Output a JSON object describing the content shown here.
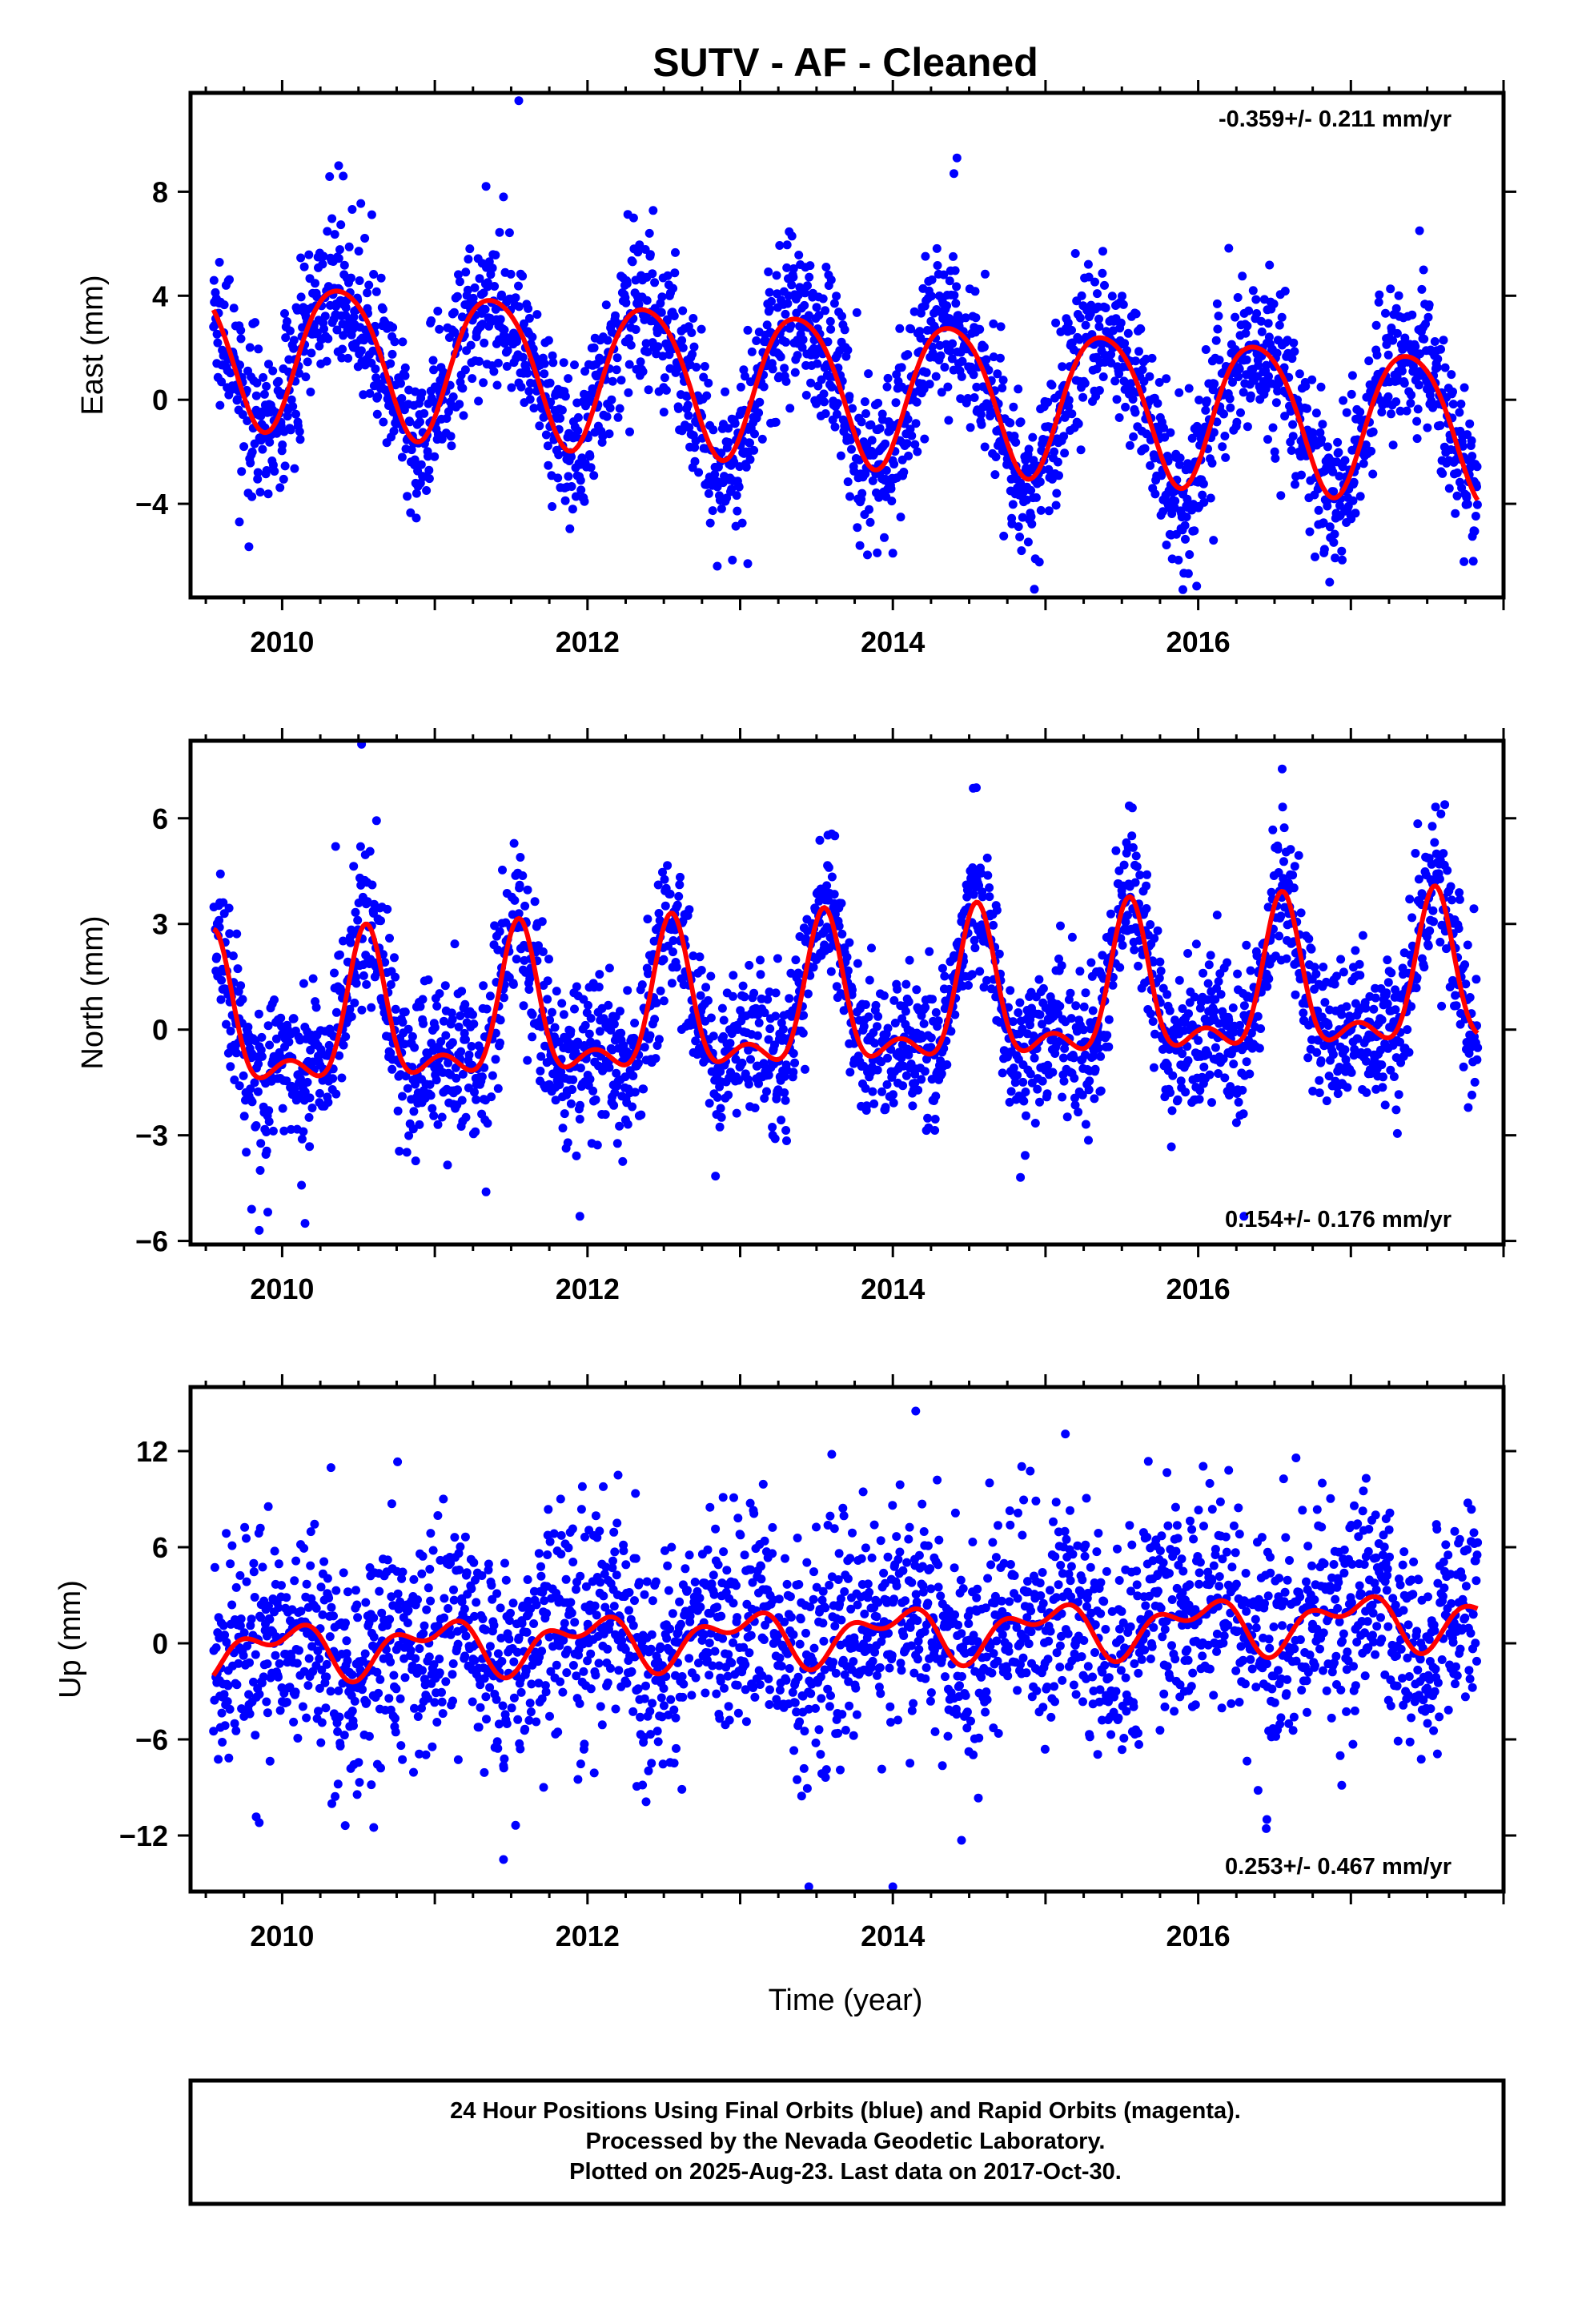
{
  "title": "SUTV  - AF - Cleaned",
  "x_axis_label": "Time (year)",
  "footer": {
    "line1": "24 Hour Positions Using Final Orbits (blue) and Rapid Orbits (magenta).",
    "line2": "Processed by the Nevada Geodetic Laboratory.",
    "line3": "Plotted on 2025-Aug-23. Last data on 2017-Oct-30."
  },
  "colors": {
    "final_orbits": "#0000ff",
    "rapid_orbits": "#ff00ff",
    "model_fit": "#ff0000",
    "frame": "#000000"
  },
  "chart_data": [
    {
      "type": "scatter",
      "name": "East",
      "ylabel": "East (mm)",
      "rate_text": "-0.359+/- 0.211 mm/yr",
      "rate_position": "top-right",
      "xlim": [
        2009.4,
        2018.0
      ],
      "ylim": [
        -7.6,
        11.8
      ],
      "yticks": [
        -4,
        0,
        4,
        8
      ],
      "xticks": [
        2010,
        2012,
        2014,
        2016
      ],
      "data_start": 2009.55,
      "data_end": 2017.83,
      "model": {
        "offset": 2.0,
        "trend": -0.359,
        "t0": 2009.55,
        "annual_amp": 2.8,
        "annual_phase_year": 2010.38,
        "semiannual_amp": 0.35,
        "semiannual_phase_year": 2010.15
      },
      "scatter_sigma": 1.5,
      "outliers": [
        [
          2010.37,
          9.0
        ],
        [
          2010.4,
          8.6
        ],
        [
          2011.55,
          11.5
        ],
        [
          2011.45,
          7.8
        ],
        [
          2014.42,
          9.3
        ],
        [
          2014.4,
          8.7
        ],
        [
          2017.45,
          6.5
        ],
        [
          2009.72,
          -4.7
        ],
        [
          2012.85,
          -6.4
        ],
        [
          2013.05,
          -6.3
        ],
        [
          2014.0,
          -5.9
        ],
        [
          2015.9,
          -7.3
        ],
        [
          2016.1,
          -5.4
        ]
      ]
    },
    {
      "type": "scatter",
      "name": "North",
      "ylabel": "North (mm)",
      "rate_text": "0.154+/- 0.176 mm/yr",
      "rate_position": "bottom-right",
      "xlim": [
        2009.4,
        2018.0
      ],
      "ylim": [
        -6.1,
        8.2
      ],
      "yticks": [
        -6,
        -3,
        0,
        3,
        6
      ],
      "xticks": [
        2010,
        2012,
        2014,
        2016
      ],
      "data_start": 2009.55,
      "data_end": 2017.83,
      "model": {
        "offset": 0.3,
        "trend": 0.154,
        "t0": 2009.55,
        "peak_phase_year": 2010.55,
        "peak_amp": 3.8,
        "peak_width": 0.12
      },
      "scatter_sigma": 1.1,
      "outliers": [
        [
          2010.52,
          8.1
        ],
        [
          2010.35,
          5.2
        ],
        [
          2009.85,
          -5.7
        ],
        [
          2009.8,
          -5.1
        ],
        [
          2010.15,
          -5.5
        ],
        [
          2011.95,
          -5.3
        ],
        [
          2013.62,
          5.5
        ],
        [
          2016.55,
          7.4
        ],
        [
          2016.3,
          -5.3
        ]
      ]
    },
    {
      "type": "scatter",
      "name": "Up",
      "ylabel": "Up (mm)",
      "rate_text": "0.253+/- 0.467 mm/yr",
      "rate_position": "bottom-right",
      "xlim": [
        2009.4,
        2018.0
      ],
      "ylim": [
        -15.5,
        16.0
      ],
      "yticks": [
        -12,
        -6,
        0,
        6,
        12
      ],
      "xticks": [
        2010,
        2012,
        2014,
        2016
      ],
      "data_start": 2009.55,
      "data_end": 2017.83,
      "model": {
        "offset": -0.5,
        "trend": 0.253,
        "t0": 2009.55,
        "annual_amp": 1.3,
        "annual_phase_year": 2010.0,
        "semiannual_amp": 0.9,
        "semiannual_phase_year": 2010.2
      },
      "scatter_sigma": 3.4,
      "outliers": [
        [
          2014.15,
          14.5
        ],
        [
          2013.6,
          11.8
        ],
        [
          2016.2,
          10.8
        ],
        [
          2012.2,
          10.5
        ],
        [
          2017.1,
          10.3
        ],
        [
          2009.85,
          -11.2
        ],
        [
          2011.45,
          -13.5
        ],
        [
          2013.45,
          -15.2
        ],
        [
          2014.0,
          -15.2
        ],
        [
          2014.45,
          -12.3
        ],
        [
          2016.45,
          -11.0
        ],
        [
          2010.6,
          -11.5
        ]
      ]
    }
  ]
}
